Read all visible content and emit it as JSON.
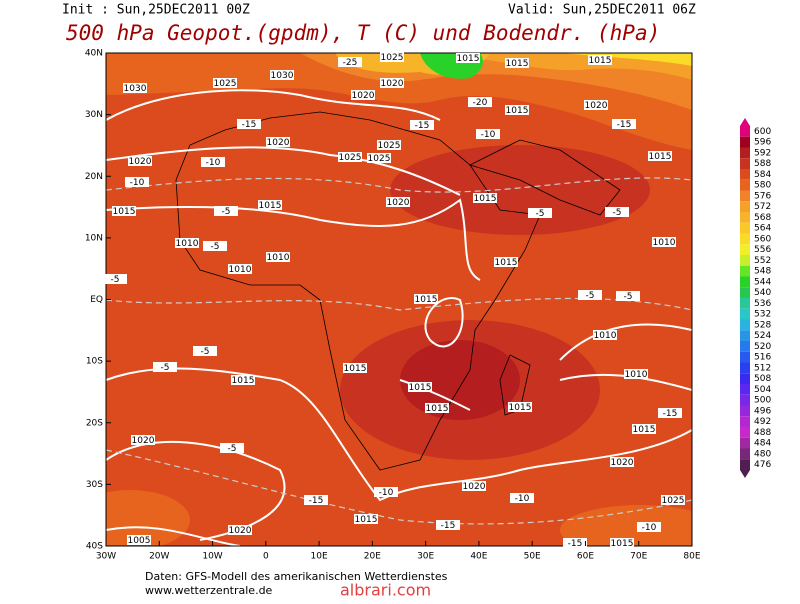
{
  "header": {
    "init": "Init : Sun,25DEC2011 00Z",
    "valid": "Valid: Sun,25DEC2011 06Z",
    "title": "500 hPa Geopot.(gpdm), T (C) und Bodendr. (hPa)"
  },
  "map": {
    "lon_labels": [
      "30W",
      "20W",
      "10W",
      "0",
      "10E",
      "20E",
      "30E",
      "40E",
      "50E",
      "60E",
      "70E",
      "80E"
    ],
    "lat_labels": [
      "40N",
      "30N",
      "20N",
      "10N",
      "EQ",
      "10S",
      "20S",
      "30S",
      "40S"
    ],
    "contour_labels": [
      "1030",
      "1030",
      "1025",
      "1025",
      "1020",
      "1015",
      "1015",
      "1015",
      "1020",
      "1015",
      "1020",
      "-25",
      "-20",
      "1020",
      "1025",
      "1025",
      "1025",
      "-15",
      "-15",
      "-10",
      "1020",
      "-10",
      "-10",
      "-15",
      "1015",
      "1015",
      "1015",
      "1020",
      "1015",
      "-5",
      "-5",
      "1010",
      "1010",
      "-5",
      "-5",
      "1010",
      "1010",
      "1015",
      "-5",
      "-5",
      "-5",
      "1015",
      "1010",
      "1015",
      "1015",
      "-5",
      "-5",
      "1015",
      "1015",
      "1015",
      "1015",
      "1010",
      "1020",
      "-5",
      "1020",
      "1020",
      "-10",
      "-15",
      "-10",
      "1015",
      "-15",
      "1005",
      "1020",
      "-15",
      "1015",
      "-10",
      "1025",
      "-15"
    ]
  },
  "colorbar": {
    "levels": [
      600,
      596,
      592,
      588,
      584,
      580,
      576,
      572,
      568,
      564,
      560,
      556,
      552,
      548,
      544,
      540,
      536,
      532,
      528,
      524,
      520,
      516,
      512,
      508,
      504,
      500,
      496,
      492,
      488,
      484,
      480,
      476
    ],
    "colors": [
      "#e0007a",
      "#a00020",
      "#b41e1e",
      "#c83220",
      "#dc4b1e",
      "#e6641e",
      "#f08228",
      "#f5a028",
      "#f8b428",
      "#fac828",
      "#fadc28",
      "#f0f028",
      "#c8f028",
      "#64e628",
      "#28d228",
      "#28c850",
      "#28c89a",
      "#28c8c8",
      "#28b4dc",
      "#2896e6",
      "#2878f0",
      "#285af0",
      "#2840f0",
      "#3c28f0",
      "#5a28f0",
      "#7828e6",
      "#9628dc",
      "#b428d2",
      "#c828c8",
      "#a028a0",
      "#782878",
      "#501e50"
    ]
  },
  "footer": {
    "source": "Daten: GFS-Modell des amerikanischen Wetterdienstes",
    "site": "www.wetterzentrale.de",
    "watermark": "albrari.com"
  }
}
